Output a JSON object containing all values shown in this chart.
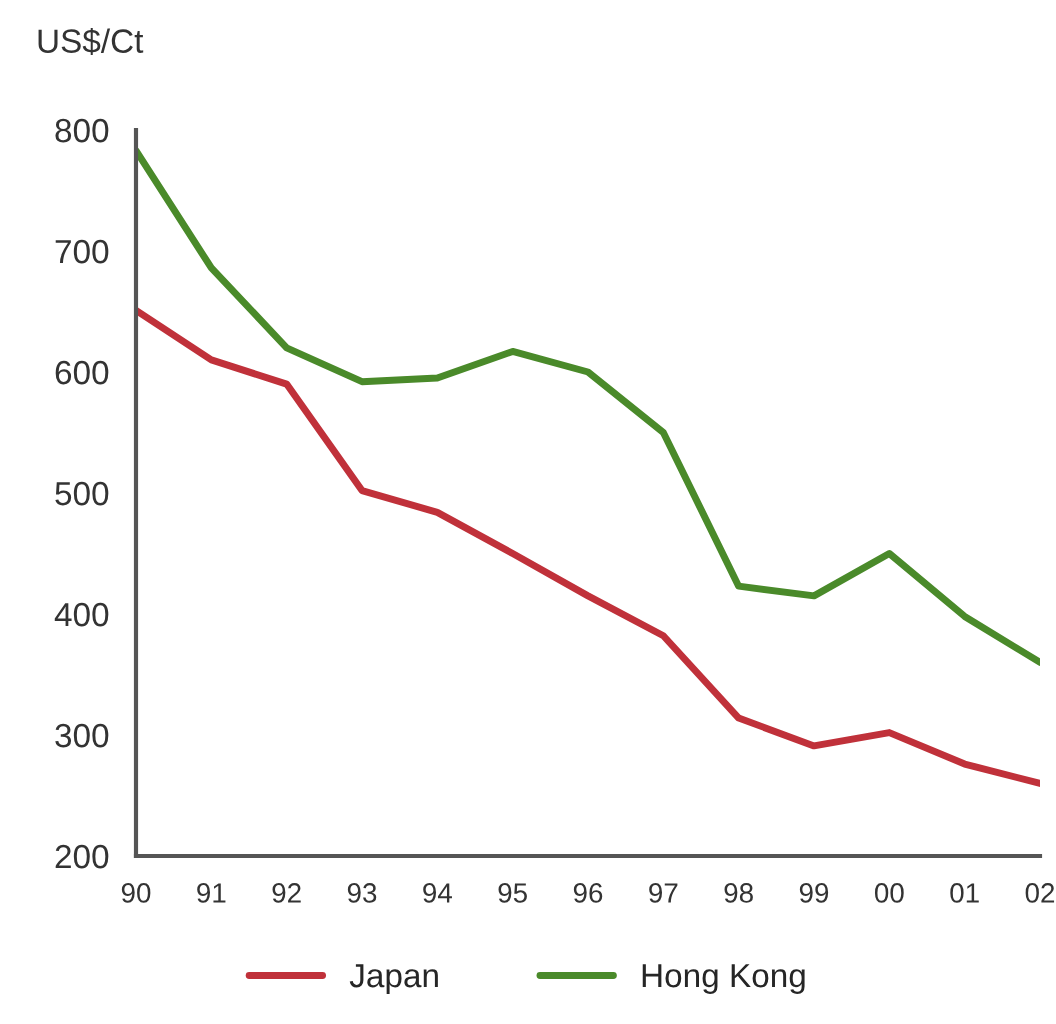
{
  "chart_data": {
    "type": "line",
    "ylabel": "US$/Ct",
    "categories": [
      "90",
      "91",
      "92",
      "93",
      "94",
      "95",
      "96",
      "97",
      "98",
      "99",
      "00",
      "01",
      "02"
    ],
    "series": [
      {
        "name": "Japan",
        "color": "#c0313a",
        "values": [
          651,
          610,
          590,
          502,
          484,
          450,
          415,
          382,
          314,
          291,
          302,
          276,
          260
        ]
      },
      {
        "name": "Hong Kong",
        "color": "#4a8a2a",
        "values": [
          783,
          686,
          620,
          592,
          595,
          617,
          600,
          550,
          423,
          415,
          450,
          398,
          360
        ]
      }
    ],
    "ylim": [
      200,
      800
    ],
    "yticks": [
      200,
      300,
      400,
      500,
      600,
      700,
      800
    ],
    "grid": false,
    "legend": "bottom",
    "marker": "none",
    "line_style": "solid"
  }
}
